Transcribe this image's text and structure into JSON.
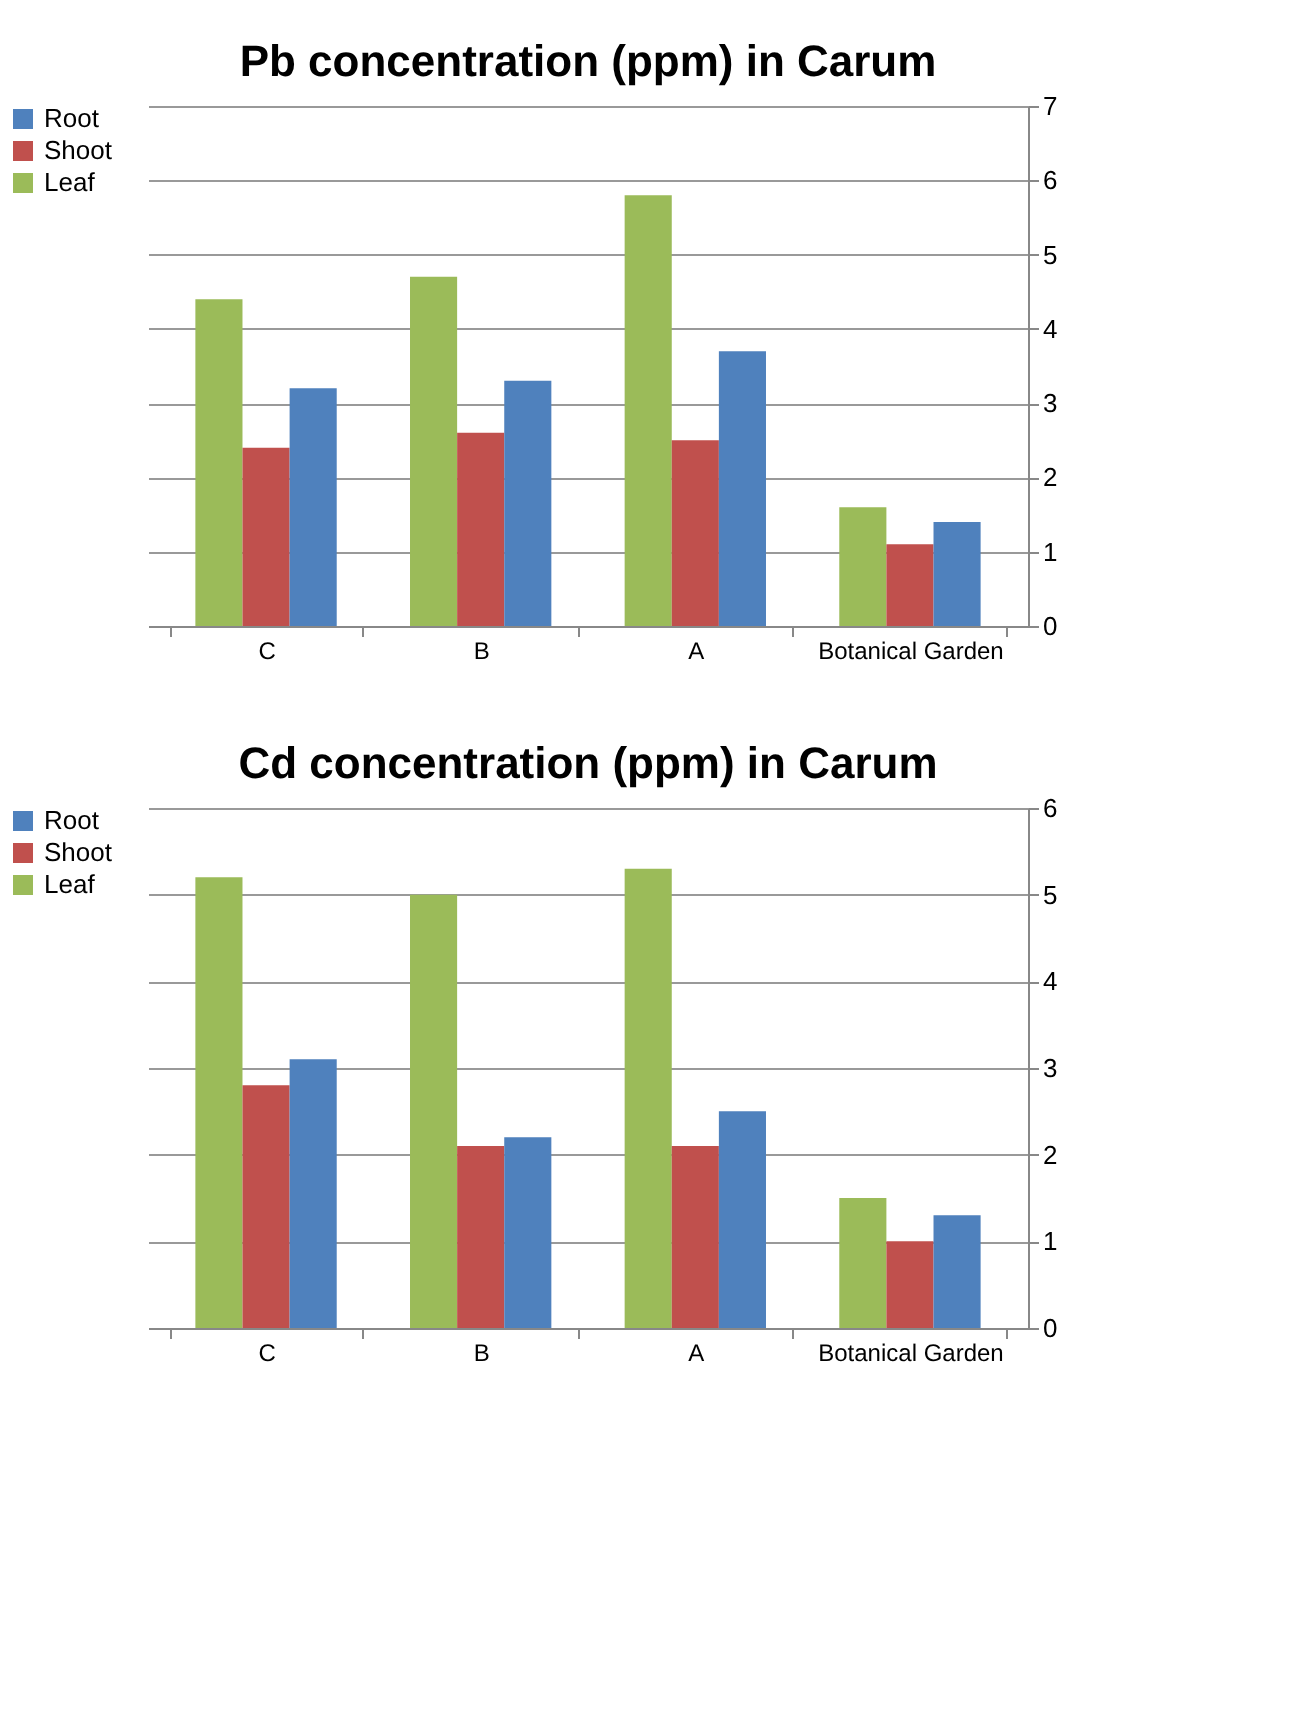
{
  "chart_data": [
    {
      "type": "bar",
      "title": "Pb concentration (ppm) in Carum",
      "categories": [
        "C",
        "B",
        "A",
        "Botanical Garden"
      ],
      "series": [
        {
          "name": "Leaf",
          "color": "#9bbb59",
          "values": [
            4.4,
            4.7,
            5.8,
            1.6
          ]
        },
        {
          "name": "Shoot",
          "color": "#c0504d",
          "values": [
            2.4,
            2.6,
            2.5,
            1.1
          ]
        },
        {
          "name": "Root",
          "color": "#4f81bd",
          "values": [
            3.2,
            3.3,
            3.7,
            1.4
          ]
        }
      ],
      "ylim": [
        0,
        7
      ],
      "yticks": [
        0,
        1,
        2,
        3,
        4,
        5,
        6,
        7
      ],
      "grid": "y",
      "legend": "left"
    },
    {
      "type": "bar",
      "title": "Cd concentration (ppm) in Carum",
      "categories": [
        "C",
        "B",
        "A",
        "Botanical Garden"
      ],
      "series": [
        {
          "name": "Leaf",
          "color": "#9bbb59",
          "values": [
            5.2,
            5.0,
            5.3,
            1.5
          ]
        },
        {
          "name": "Shoot",
          "color": "#c0504d",
          "values": [
            2.8,
            2.1,
            2.1,
            1.0
          ]
        },
        {
          "name": "Root",
          "color": "#4f81bd",
          "values": [
            3.1,
            2.2,
            2.5,
            1.3
          ]
        }
      ],
      "ylim": [
        0,
        6
      ],
      "yticks": [
        0,
        1,
        2,
        3,
        4,
        5,
        6
      ],
      "grid": "y",
      "legend": "left"
    }
  ]
}
